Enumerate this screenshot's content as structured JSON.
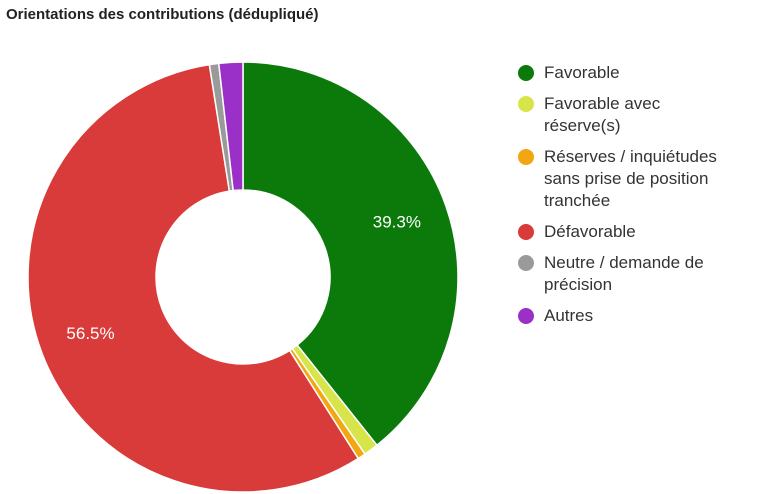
{
  "chart_data": {
    "type": "pie",
    "title": "Orientations des contributions (dédupliqué)",
    "donut": true,
    "legend_position": "right",
    "categories": [
      "Favorable",
      "Favorable avec\nréserve(s)",
      "Réserves / inquiétudes\nsans prise de position\ntranchée",
      "Défavorable",
      "Neutre / demande de\nprécision",
      "Autres"
    ],
    "values": [
      39.3,
      1.1,
      0.6,
      56.5,
      0.7,
      1.8
    ],
    "colors": [
      "#0b7a0b",
      "#d7e44a",
      "#f2a712",
      "#d93a3a",
      "#9a9a9a",
      "#9b30c8"
    ],
    "data_labels": [
      "39.3%",
      "",
      "",
      "56.5%",
      "",
      ""
    ]
  }
}
